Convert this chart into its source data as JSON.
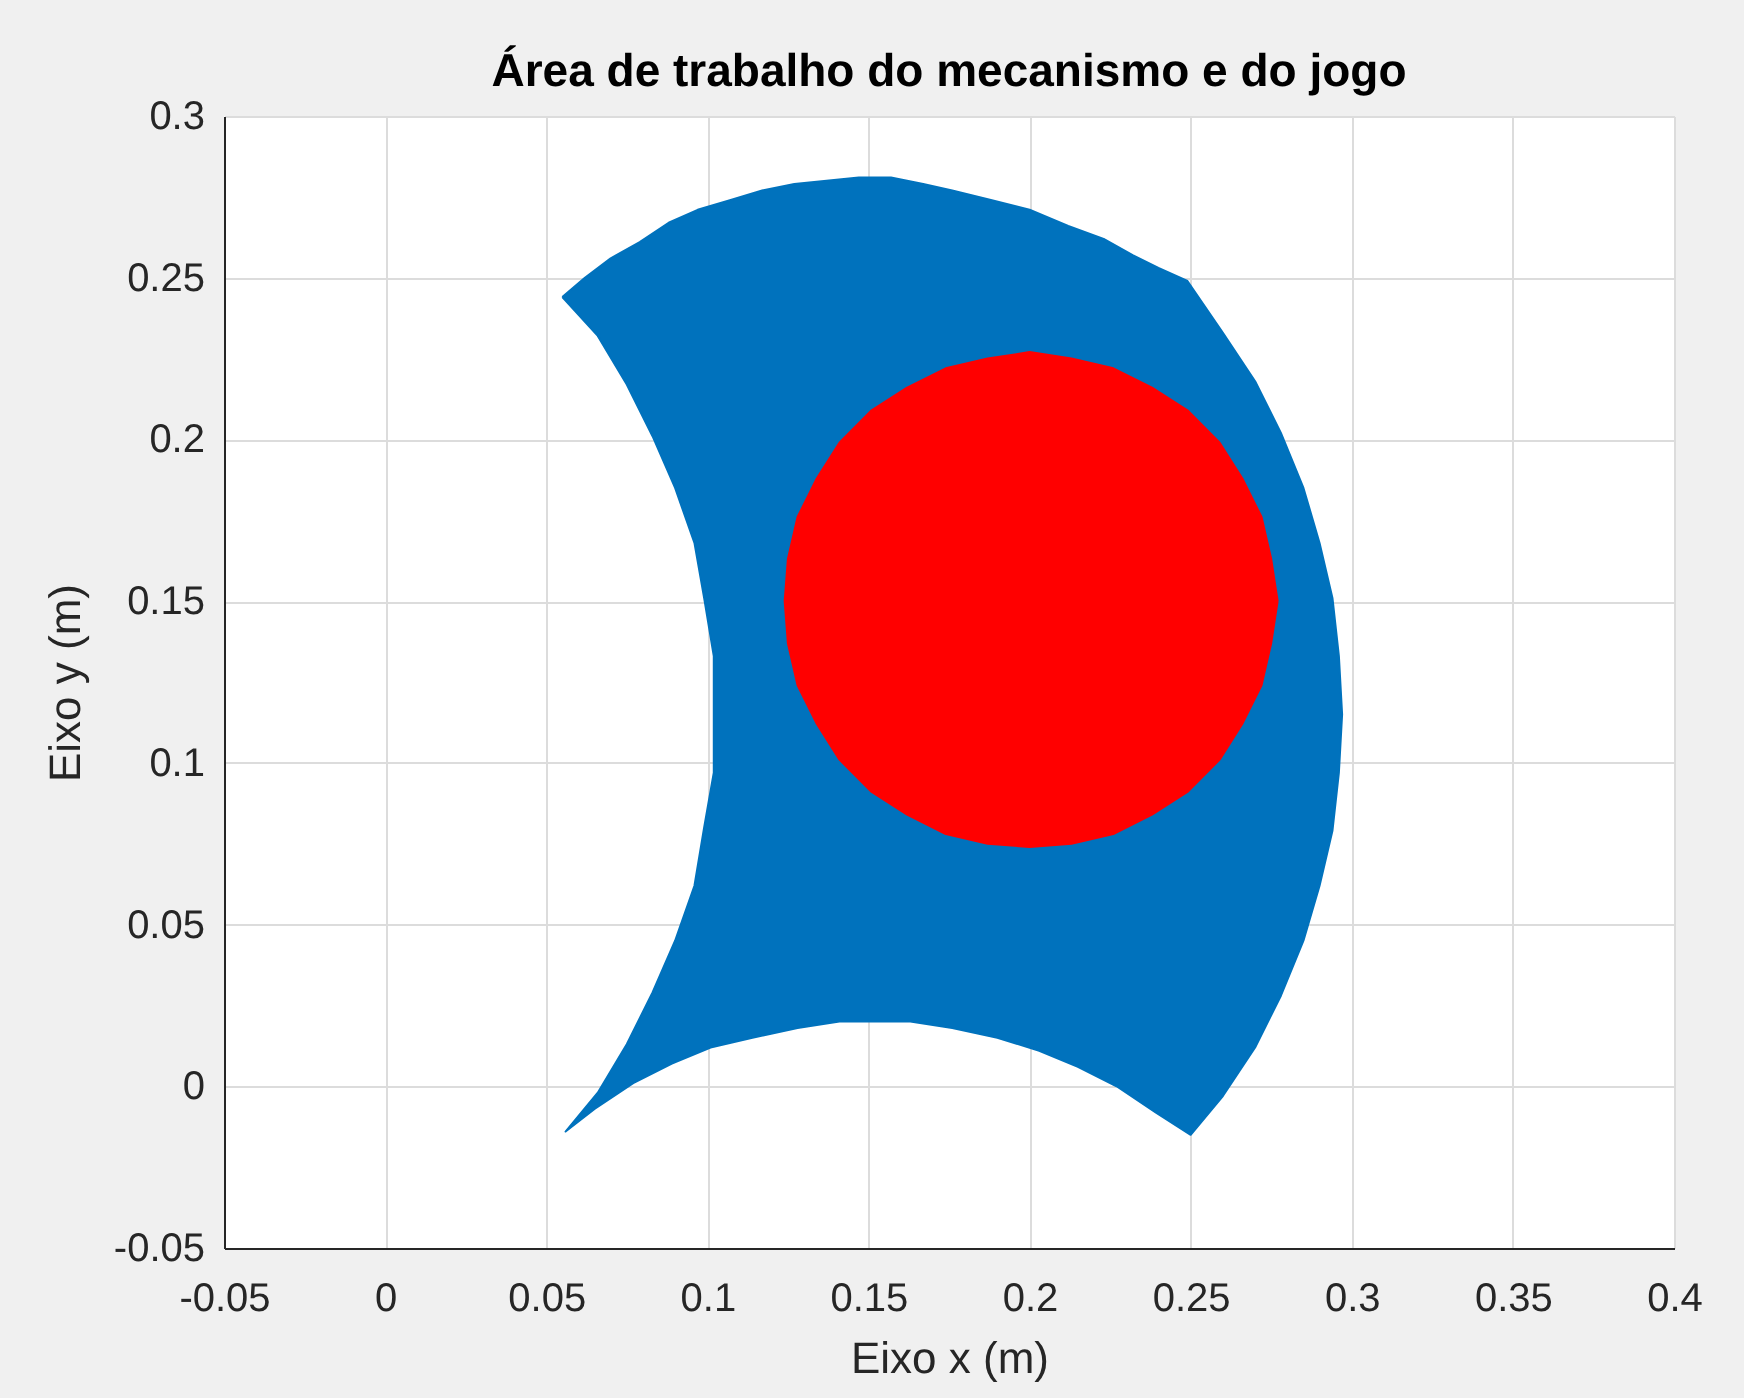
{
  "chart_data": {
    "type": "area",
    "title": "Área de trabalho do mecanismo e do jogo",
    "xlabel": "Eixo x (m)",
    "ylabel": "Eixo y (m)",
    "xlim": [
      -0.05,
      0.4
    ],
    "ylim": [
      -0.05,
      0.3
    ],
    "xticks": [
      -0.05,
      0,
      0.05,
      0.1,
      0.15,
      0.2,
      0.25,
      0.3,
      0.35,
      0.4
    ],
    "yticks": [
      -0.05,
      0,
      0.05,
      0.1,
      0.15,
      0.2,
      0.25,
      0.3
    ],
    "grid": true,
    "series": [
      {
        "color": "#0072bd",
        "x": [
          0.055,
          0.062,
          0.07,
          0.079,
          0.088,
          0.097,
          0.107,
          0.117,
          0.127,
          0.137,
          0.147,
          0.157,
          0.167,
          0.176,
          0.188,
          0.2,
          0.212,
          0.223,
          0.232,
          0.24,
          0.249,
          0.26,
          0.27,
          0.278,
          0.285,
          0.29,
          0.294,
          0.296,
          0.297,
          0.296,
          0.294,
          0.29,
          0.285,
          0.278,
          0.27,
          0.26,
          0.25,
          0.239,
          0.227,
          0.215,
          0.203,
          0.19,
          0.176,
          0.163,
          0.152,
          0.141,
          0.128,
          0.114,
          0.101,
          0.089,
          0.077,
          0.065,
          0.056,
          0.066,
          0.075,
          0.083,
          0.09,
          0.096,
          0.099,
          0.102,
          0.102,
          0.102,
          0.099,
          0.096,
          0.09,
          0.083,
          0.075,
          0.066,
          0.055
        ],
        "values": [
          0.244,
          0.25,
          0.256,
          0.261,
          0.267,
          0.271,
          0.274,
          0.277,
          0.279,
          0.28,
          0.281,
          0.281,
          0.279,
          0.277,
          0.274,
          0.271,
          0.266,
          0.262,
          0.257,
          0.253,
          0.249,
          0.233,
          0.218,
          0.202,
          0.185,
          0.168,
          0.151,
          0.133,
          0.115,
          0.097,
          0.079,
          0.062,
          0.045,
          0.028,
          0.012,
          -0.003,
          -0.015,
          -0.008,
          0.0,
          0.006,
          0.011,
          0.015,
          0.018,
          0.02,
          0.02,
          0.02,
          0.018,
          0.015,
          0.012,
          0.007,
          0.001,
          -0.007,
          -0.014,
          -0.002,
          0.013,
          0.029,
          0.045,
          0.062,
          0.08,
          0.097,
          0.115,
          0.133,
          0.151,
          0.168,
          0.185,
          0.201,
          0.217,
          0.232,
          0.244
        ]
      },
      {
        "color": "#ff0000",
        "x": [
          0.277,
          0.275,
          0.272,
          0.266,
          0.259,
          0.249,
          0.238,
          0.226,
          0.213,
          0.2,
          0.187,
          0.174,
          0.162,
          0.151,
          0.141,
          0.134,
          0.128,
          0.125,
          0.124,
          0.125,
          0.128,
          0.134,
          0.141,
          0.151,
          0.162,
          0.174,
          0.187,
          0.2,
          0.213,
          0.226,
          0.238,
          0.249,
          0.259,
          0.266,
          0.272,
          0.275,
          0.277
        ],
        "values": [
          0.15,
          0.163,
          0.176,
          0.188,
          0.199,
          0.209,
          0.216,
          0.222,
          0.225,
          0.227,
          0.225,
          0.222,
          0.216,
          0.209,
          0.199,
          0.188,
          0.176,
          0.163,
          0.15,
          0.137,
          0.124,
          0.112,
          0.101,
          0.091,
          0.084,
          0.078,
          0.075,
          0.074,
          0.075,
          0.078,
          0.084,
          0.091,
          0.101,
          0.112,
          0.124,
          0.137,
          0.15
        ]
      }
    ]
  }
}
